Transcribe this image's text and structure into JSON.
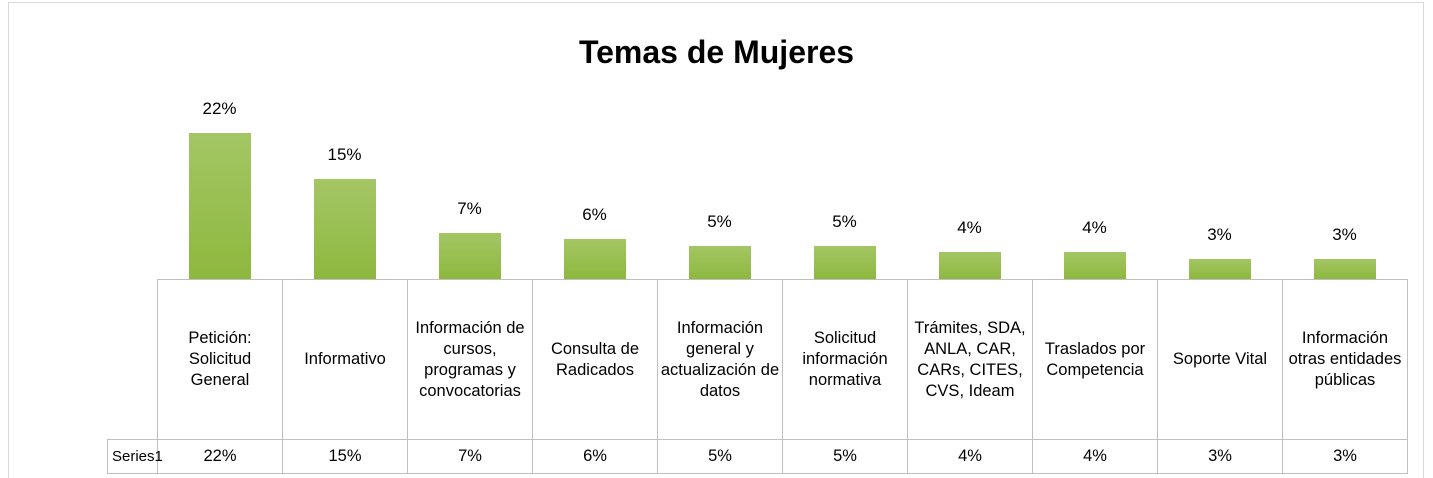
{
  "chart_data": {
    "type": "bar",
    "title": "Temas de Mujeres",
    "categories": [
      "Petición: Solicitud General",
      "Informativo",
      "Información de cursos, programas y convocatorias",
      "Consulta de Radicados",
      "Información general y actualización de datos",
      "Solicitud información normativa",
      "Trámites, SDA, ANLA, CAR, CARs, CITES, CVS, Ideam",
      "Traslados por Competencia",
      "Soporte Vital",
      "Información otras entidades públicas"
    ],
    "series": [
      {
        "name": "Series1",
        "color": "#8db83e",
        "values": [
          22,
          15,
          7,
          6,
          5,
          5,
          4,
          4,
          3,
          3
        ],
        "value_labels": [
          "22%",
          "15%",
          "7%",
          "6%",
          "5%",
          "5%",
          "4%",
          "4%",
          "3%",
          "3%"
        ]
      }
    ]
  }
}
